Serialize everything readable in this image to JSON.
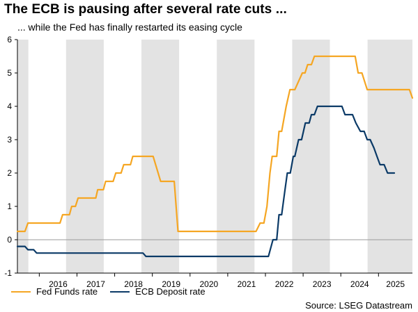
{
  "chart_data": {
    "type": "line",
    "title": "The ECB is pausing after several rate cuts ...",
    "subtitle": "... while the Fed has finally restarted its easing cycle",
    "source": "Source: LSEG Datastream",
    "x_range": [
      2015.42,
      2025.9
    ],
    "ylim": [
      -1,
      6
    ],
    "y_ticks": [
      "-1",
      "0",
      "1",
      "2",
      "3",
      "4",
      "5",
      "6"
    ],
    "x_tick_labels": [
      "2016",
      "2017",
      "2018",
      "2019",
      "2020",
      "2021",
      "2022",
      "2023",
      "2024",
      "2025"
    ],
    "shaded_bands": [
      [
        2015.42,
        2015.71
      ],
      [
        2016.71,
        2017.71
      ],
      [
        2018.71,
        2019.71
      ],
      [
        2020.71,
        2021.71
      ],
      [
        2022.71,
        2023.71
      ],
      [
        2024.71,
        2025.9
      ]
    ],
    "colors": {
      "fed": "#f5a623",
      "ecb": "#0b3a67",
      "band": "#e3e3e3",
      "zero_line": "#999999"
    },
    "series": [
      {
        "name": "Fed Funds rate",
        "key": "fed",
        "points": [
          [
            2015.42,
            0.25
          ],
          [
            2015.62,
            0.25
          ],
          [
            2015.7,
            0.5
          ],
          [
            2016.55,
            0.5
          ],
          [
            2016.62,
            0.75
          ],
          [
            2016.8,
            0.75
          ],
          [
            2016.86,
            1.0
          ],
          [
            2016.96,
            1.0
          ],
          [
            2017.03,
            1.25
          ],
          [
            2017.5,
            1.25
          ],
          [
            2017.55,
            1.5
          ],
          [
            2017.7,
            1.5
          ],
          [
            2017.76,
            1.75
          ],
          [
            2017.96,
            1.75
          ],
          [
            2018.03,
            2.0
          ],
          [
            2018.17,
            2.0
          ],
          [
            2018.24,
            2.25
          ],
          [
            2018.42,
            2.25
          ],
          [
            2018.48,
            2.5
          ],
          [
            2019.02,
            2.5
          ],
          [
            2019.22,
            1.75
          ],
          [
            2019.58,
            1.75
          ],
          [
            2019.68,
            0.25
          ],
          [
            2021.75,
            0.25
          ],
          [
            2021.86,
            0.5
          ],
          [
            2021.96,
            0.5
          ],
          [
            2022.04,
            1.0
          ],
          [
            2022.12,
            2.0
          ],
          [
            2022.18,
            2.5
          ],
          [
            2022.3,
            2.5
          ],
          [
            2022.36,
            3.25
          ],
          [
            2022.43,
            3.25
          ],
          [
            2022.55,
            4.0
          ],
          [
            2022.65,
            4.5
          ],
          [
            2022.78,
            4.5
          ],
          [
            2022.88,
            4.75
          ],
          [
            2022.98,
            5.0
          ],
          [
            2023.05,
            5.0
          ],
          [
            2023.12,
            5.25
          ],
          [
            2023.22,
            5.25
          ],
          [
            2023.3,
            5.5
          ],
          [
            2024.38,
            5.5
          ],
          [
            2024.46,
            5.0
          ],
          [
            2024.56,
            5.0
          ],
          [
            2024.7,
            4.5
          ],
          [
            2025.82,
            4.5
          ],
          [
            2025.9,
            4.25
          ]
        ]
      },
      {
        "name": "ECB Deposit rate",
        "key": "ecb",
        "points": [
          [
            2015.42,
            -0.2
          ],
          [
            2015.62,
            -0.2
          ],
          [
            2015.7,
            -0.3
          ],
          [
            2015.85,
            -0.3
          ],
          [
            2015.93,
            -0.4
          ],
          [
            2018.75,
            -0.4
          ],
          [
            2018.83,
            -0.5
          ],
          [
            2022.08,
            -0.5
          ],
          [
            2022.2,
            0.0
          ],
          [
            2022.3,
            0.0
          ],
          [
            2022.36,
            0.75
          ],
          [
            2022.43,
            0.75
          ],
          [
            2022.52,
            1.5
          ],
          [
            2022.58,
            2.0
          ],
          [
            2022.66,
            2.0
          ],
          [
            2022.74,
            2.5
          ],
          [
            2022.78,
            2.5
          ],
          [
            2022.88,
            3.0
          ],
          [
            2022.96,
            3.0
          ],
          [
            2023.06,
            3.5
          ],
          [
            2023.16,
            3.5
          ],
          [
            2023.22,
            3.75
          ],
          [
            2023.3,
            3.75
          ],
          [
            2023.38,
            4.0
          ],
          [
            2024.03,
            4.0
          ],
          [
            2024.11,
            3.75
          ],
          [
            2024.31,
            3.75
          ],
          [
            2024.4,
            3.5
          ],
          [
            2024.52,
            3.25
          ],
          [
            2024.62,
            3.25
          ],
          [
            2024.7,
            3.0
          ],
          [
            2024.78,
            3.0
          ],
          [
            2024.88,
            2.75
          ],
          [
            2024.96,
            2.5
          ],
          [
            2025.04,
            2.25
          ],
          [
            2025.15,
            2.25
          ],
          [
            2025.24,
            2.0
          ],
          [
            2025.42,
            2.0
          ]
        ]
      }
    ]
  }
}
